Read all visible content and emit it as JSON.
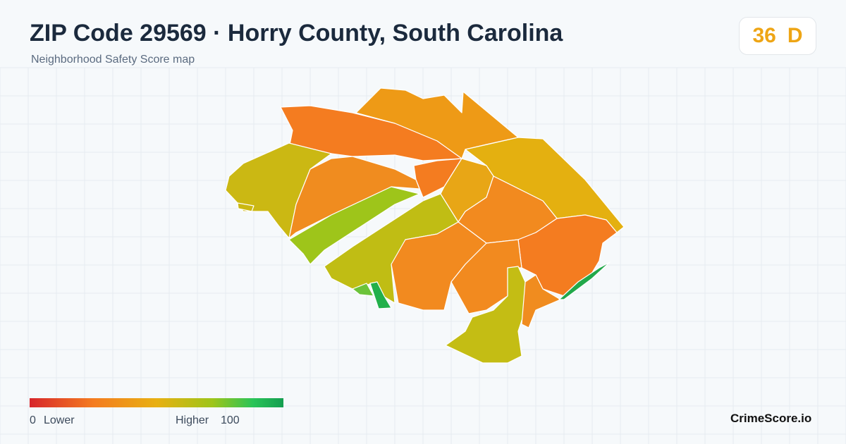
{
  "header": {
    "title": "ZIP Code 29569 · Horry County, South Carolina",
    "subtitle": "Neighborhood Safety Score map"
  },
  "score": {
    "value": 36,
    "grade": "D"
  },
  "legend": {
    "min": 0,
    "min_label": "Lower",
    "max_label": "Higher",
    "max": 100
  },
  "footer": {
    "brand": "CrimeScore.io"
  }
}
